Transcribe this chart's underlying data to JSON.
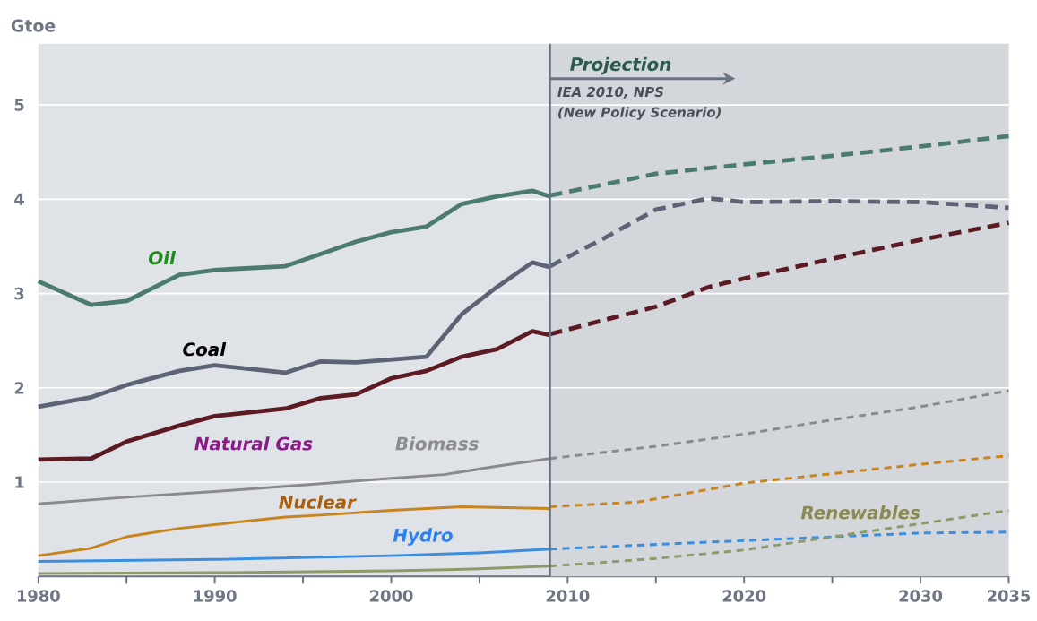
{
  "chart_data": {
    "type": "line",
    "ylabel": "Gtoe",
    "xlim": [
      1980,
      2035
    ],
    "ylim": [
      0,
      5.65
    ],
    "xticks": [
      1980,
      {
        "value": 1985,
        "label": null
      },
      1990,
      {
        "value": 1995,
        "label": null
      },
      2000,
      {
        "value": 2005,
        "label": null
      },
      2010,
      {
        "value": 2015,
        "label": null
      },
      2020,
      {
        "value": 2025,
        "label": null
      },
      2030,
      2035
    ],
    "yticks": [
      1,
      2,
      3,
      4,
      5
    ],
    "grid": "y",
    "series": [
      {
        "name": "Oil",
        "color": "#4b7a70",
        "line_style": "solid",
        "x": [
          1980,
          1983,
          1985,
          1988,
          1990,
          1994,
          1996,
          1998,
          2000,
          2002,
          2004,
          2006,
          2008,
          2009
        ],
        "values": [
          3.13,
          2.88,
          2.92,
          3.2,
          3.25,
          3.29,
          3.42,
          3.55,
          3.65,
          3.71,
          3.95,
          4.03,
          4.09,
          4.03
        ]
      },
      {
        "name": "Coal",
        "color": "#5b6374",
        "line_style": "solid",
        "x": [
          1980,
          1983,
          1985,
          1988,
          1990,
          1994,
          1996,
          1998,
          2000,
          2002,
          2004,
          2006,
          2008,
          2009
        ],
        "values": [
          1.8,
          1.9,
          2.03,
          2.18,
          2.24,
          2.16,
          2.28,
          2.27,
          2.3,
          2.33,
          2.78,
          3.07,
          3.33,
          3.28
        ]
      },
      {
        "name": "Natural Gas",
        "color": "#5c1a22",
        "line_style": "solid",
        "x": [
          1980,
          1983,
          1985,
          1988,
          1990,
          1994,
          1996,
          1998,
          2000,
          2002,
          2004,
          2006,
          2008,
          2009
        ],
        "values": [
          1.24,
          1.25,
          1.43,
          1.6,
          1.7,
          1.78,
          1.89,
          1.93,
          2.1,
          2.18,
          2.33,
          2.41,
          2.6,
          2.56
        ]
      },
      {
        "name": "Biomass",
        "color": "#8a8a8e",
        "line_style": "solid",
        "x": [
          1980,
          1985,
          1990,
          1995,
          2000,
          2003,
          2006,
          2009
        ],
        "values": [
          0.77,
          0.84,
          0.9,
          0.97,
          1.04,
          1.08,
          1.17,
          1.25
        ]
      },
      {
        "name": "Nuclear",
        "color": "#c8841e",
        "line_style": "solid",
        "x": [
          1980,
          1983,
          1985,
          1988,
          1990,
          1994,
          1996,
          2000,
          2004,
          2009
        ],
        "values": [
          0.22,
          0.3,
          0.42,
          0.51,
          0.55,
          0.63,
          0.65,
          0.7,
          0.74,
          0.72
        ]
      },
      {
        "name": "Hydro",
        "color": "#3a8ee0",
        "line_style": "solid",
        "x": [
          1980,
          1990,
          2000,
          2005,
          2009
        ],
        "values": [
          0.16,
          0.18,
          0.22,
          0.25,
          0.29
        ]
      },
      {
        "name": "Renewables",
        "color": "#8f9a6a",
        "line_style": "solid",
        "x": [
          1980,
          1990,
          2000,
          2005,
          2009
        ],
        "values": [
          0.03,
          0.04,
          0.06,
          0.08,
          0.11
        ]
      },
      {
        "color": "#4b7a70",
        "line_style": "dashed",
        "x": [
          2009,
          2015,
          2018,
          2020,
          2025,
          2030,
          2035
        ],
        "values": [
          4.04,
          4.27,
          4.33,
          4.37,
          4.46,
          4.56,
          4.67
        ]
      },
      {
        "color": "#5b6374",
        "line_style": "dashed",
        "x": [
          2009,
          2012,
          2015,
          2018,
          2020,
          2025,
          2030,
          2035
        ],
        "values": [
          3.29,
          3.58,
          3.89,
          4.01,
          3.97,
          3.98,
          3.97,
          3.91
        ]
      },
      {
        "color": "#5c1a22",
        "line_style": "dashed",
        "x": [
          2009,
          2015,
          2018,
          2020,
          2025,
          2030,
          2035
        ],
        "values": [
          2.57,
          2.86,
          3.07,
          3.16,
          3.37,
          3.57,
          3.75
        ]
      },
      {
        "color": "#8a8a8e",
        "line_style": "dashed",
        "x": [
          2009,
          2015,
          2020,
          2025,
          2030,
          2035
        ],
        "values": [
          1.25,
          1.38,
          1.51,
          1.66,
          1.8,
          1.97
        ]
      },
      {
        "color": "#c8841e",
        "line_style": "dashed",
        "x": [
          2009,
          2014,
          2020,
          2025,
          2030,
          2035
        ],
        "values": [
          0.74,
          0.79,
          0.99,
          1.09,
          1.19,
          1.28
        ]
      },
      {
        "color": "#3a8ee0",
        "line_style": "dashed",
        "x": [
          2009,
          2020,
          2025,
          2030,
          2035
        ],
        "values": [
          0.29,
          0.38,
          0.42,
          0.46,
          0.47
        ]
      },
      {
        "color": "#8f9a6a",
        "line_style": "dashed",
        "x": [
          2009,
          2015,
          2020,
          2025,
          2030,
          2035
        ],
        "values": [
          0.11,
          0.19,
          0.28,
          0.42,
          0.56,
          0.7
        ]
      }
    ],
    "bands": [
      {
        "axis": "x",
        "from": 2009,
        "to": 2035,
        "label": "Projection",
        "color": "#d3d7dc"
      }
    ],
    "ref_lines": [
      {
        "axis": "x",
        "value": 2009,
        "color": "#6a7383"
      }
    ],
    "annotations": [
      "IEA 2010, NPS",
      "(New Policy Scenario)"
    ]
  }
}
